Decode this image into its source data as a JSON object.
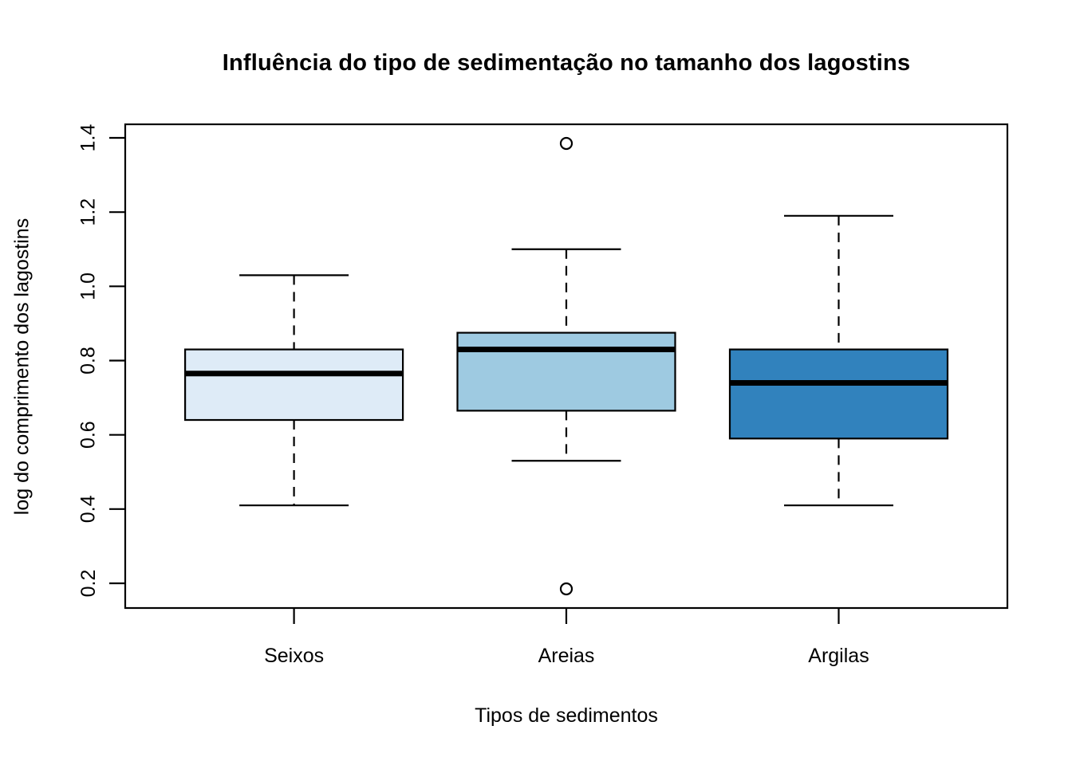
{
  "chart_data": {
    "type": "boxplot",
    "title": "Influência do tipo de sedimentação no tamanho dos lagostins",
    "xlabel": "Tipos de sedimentos",
    "ylabel": "log do comprimento dos lagostins",
    "categories": [
      "Seixos",
      "Areias",
      "Argilas"
    ],
    "y_axis": {
      "tick_values": [
        0.2,
        0.4,
        0.6,
        0.8,
        1.0,
        1.2,
        1.4
      ],
      "tick_labels": [
        "0.2",
        "0.4",
        "0.6",
        "0.8",
        "1.0",
        "1.2",
        "1.4"
      ],
      "range_shown": [
        0.13,
        1.44
      ],
      "grid": false
    },
    "series": [
      {
        "name": "Seixos",
        "whisker_low": 0.41,
        "q1": 0.64,
        "median": 0.765,
        "q3": 0.83,
        "whisker_high": 1.03,
        "outliers": [],
        "fill_color": "#DEEBF7"
      },
      {
        "name": "Areias",
        "whisker_low": 0.53,
        "q1": 0.665,
        "median": 0.83,
        "q3": 0.875,
        "whisker_high": 1.1,
        "outliers": [
          0.185,
          1.385
        ],
        "fill_color": "#9ECAE1"
      },
      {
        "name": "Argilas",
        "whisker_low": 0.41,
        "q1": 0.59,
        "median": 0.74,
        "q3": 0.83,
        "whisker_high": 1.19,
        "outliers": [],
        "fill_color": "#3182BD"
      }
    ],
    "stroke_color": "#000000",
    "background_color": "#FFFFFF",
    "legend": "none"
  }
}
